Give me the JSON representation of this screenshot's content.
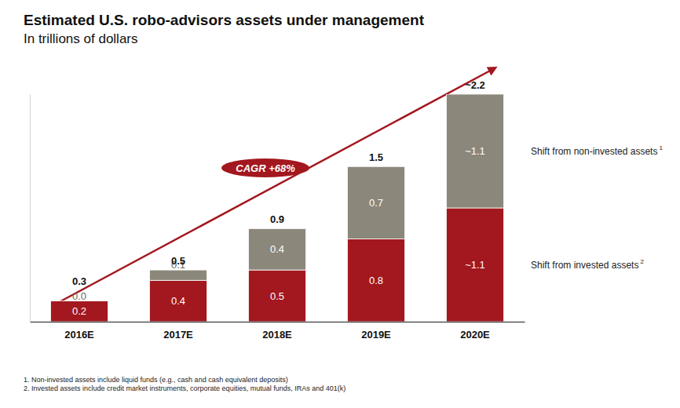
{
  "chart_data": {
    "type": "bar",
    "title": "Estimated U.S. robo-advisors assets under management",
    "subtitle": "In trillions of dollars",
    "categories": [
      "2016E",
      "2017E",
      "2018E",
      "2019E",
      "2020E"
    ],
    "series": [
      {
        "name": "Shift from invested assets",
        "footnote_ref": "2",
        "color": "#a3171e",
        "values": [
          0.2,
          0.4,
          0.5,
          0.8,
          1.1
        ],
        "value_labels": [
          "0.2",
          "0.4",
          "0.5",
          "0.8",
          "~1.1"
        ]
      },
      {
        "name": "Shift from non-invested assets",
        "footnote_ref": "1",
        "color": "#8c877b",
        "values": [
          0.0,
          0.1,
          0.4,
          0.7,
          1.1
        ],
        "value_labels": [
          "0.0",
          "0.1",
          "0.4",
          "0.7",
          "~1.1"
        ]
      }
    ],
    "totals": {
      "values": [
        0.3,
        0.5,
        0.9,
        1.5,
        2.2
      ],
      "value_labels": [
        "0.3",
        "0.5",
        "0.9",
        "1.5",
        "~2.2"
      ]
    },
    "annotations": [
      {
        "text": "CAGR +68%"
      }
    ],
    "footnotes": [
      "1. Non-invested assets include liquid funds (e.g., cash and cash equivalent deposits)",
      "2. Invested assets include credit market instruments, corporate equities, mutual funds, IRAs and 401(k)"
    ],
    "ylim": [
      0,
      2.2
    ],
    "yticks": [],
    "stacked": true,
    "data_labels": true,
    "grid": false,
    "tick_labels": "x"
  }
}
